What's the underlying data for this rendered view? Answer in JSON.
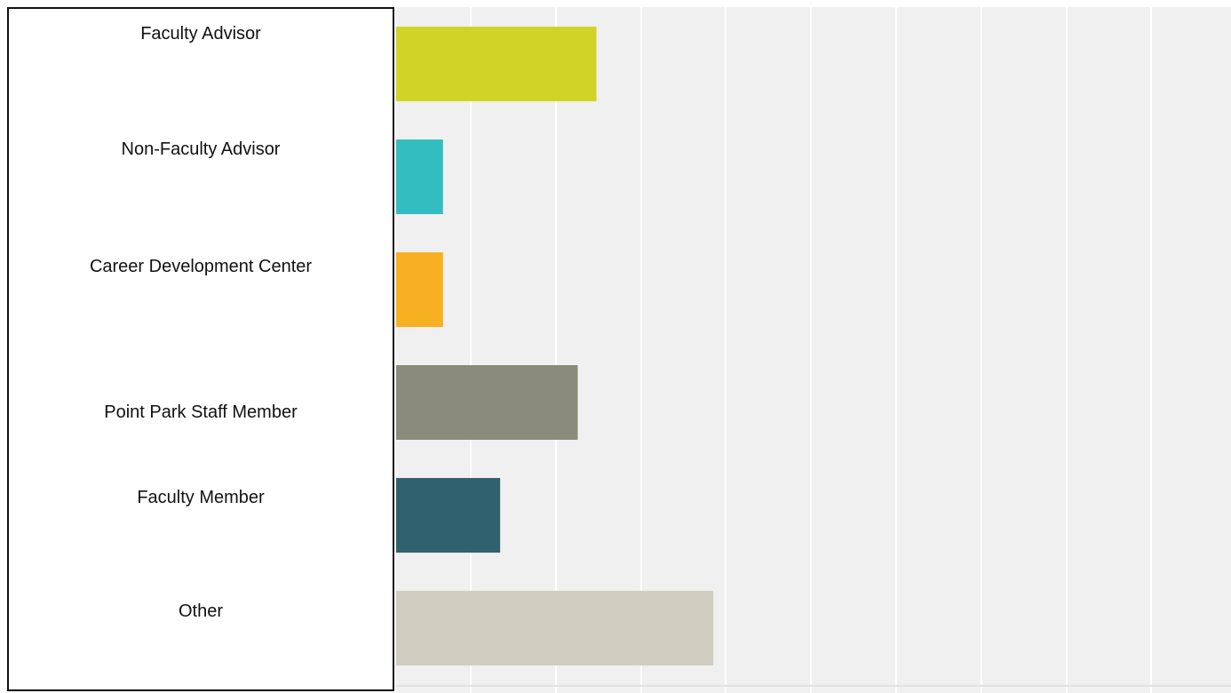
{
  "chart_data": {
    "type": "bar",
    "orientation": "horizontal",
    "categories": [
      "Faculty Advisor",
      "Non-Faculty Advisor",
      "Career Development Center",
      "Point Park Staff Member",
      "Faculty Member",
      "Other"
    ],
    "values": [
      23.5,
      5.5,
      5.5,
      21.3,
      12.2,
      37.2
    ],
    "colors": [
      "#cfd427",
      "#33bdc0",
      "#f7b022",
      "#8a8b7a",
      "#2f626e",
      "#cfcdc0"
    ],
    "xlim": [
      0,
      100
    ],
    "grid": true,
    "legend": "none"
  }
}
